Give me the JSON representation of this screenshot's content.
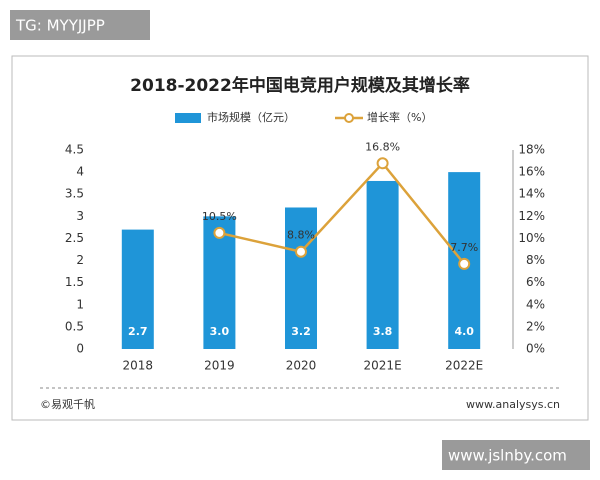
{
  "overlay_top": "TG: MYYJJPP",
  "overlay_bottom": "www.jslnby.com",
  "footer_left": "©易观千帆",
  "footer_right": "www.analysys.cn",
  "chart_data": {
    "type": "bar",
    "title": "2018-2022年中国电竞用户规模及其增长率",
    "categories": [
      "2018",
      "2019",
      "2020",
      "2021E",
      "2022E"
    ],
    "series": [
      {
        "name": "市场规模（亿元）",
        "type": "bar",
        "color": "#1f95d8",
        "values": [
          2.7,
          3.0,
          3.2,
          3.8,
          4.0
        ],
        "value_labels": [
          "2.7",
          "3.0",
          "3.2",
          "3.8",
          "4.0"
        ]
      },
      {
        "name": "增长率（%）",
        "type": "line",
        "axis": "y2",
        "color": "#dca23a",
        "values": [
          null,
          10.5,
          8.8,
          16.8,
          7.7
        ],
        "value_labels": [
          null,
          "10.5%",
          "8.8%",
          "16.8%",
          "7.7%"
        ]
      }
    ],
    "ylim": [
      0,
      4.5
    ],
    "yticks": [
      0,
      0.5,
      1,
      1.5,
      2,
      2.5,
      3,
      3.5,
      4,
      4.5
    ],
    "y2lim": [
      0,
      18
    ],
    "y2ticks": [
      {
        "value": 0,
        "label": "0%"
      },
      {
        "value": 2,
        "label": "2%"
      },
      {
        "value": 4,
        "label": "4%"
      },
      {
        "value": 6,
        "label": "6%"
      },
      {
        "value": 8,
        "label": "8%"
      },
      {
        "value": 10,
        "label": "10%"
      },
      {
        "value": 12,
        "label": "12%"
      },
      {
        "value": 14,
        "label": "14%"
      },
      {
        "value": 16,
        "label": "16%"
      },
      {
        "value": 18,
        "label": "18%"
      }
    ],
    "grid": false,
    "legend": "top"
  }
}
